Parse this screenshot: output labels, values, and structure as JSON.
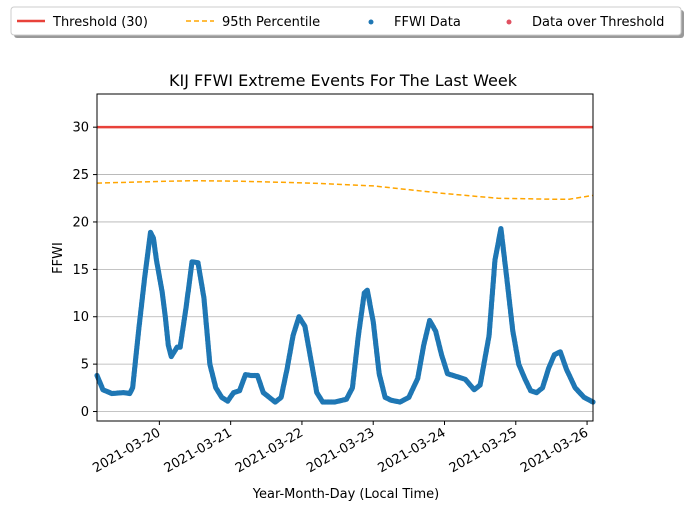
{
  "chart_data": {
    "type": "scatter",
    "title": "KIJ FFWI Extreme Events For The Last Week",
    "xlabel": "Year-Month-Day (Local Time)",
    "ylabel": "FFWI",
    "x_ticks": [
      "2021-03-20",
      "2021-03-21",
      "2021-03-22",
      "2021-03-23",
      "2021-03-24",
      "2021-03-25",
      "2021-03-26"
    ],
    "y_ticks": [
      "0",
      "5",
      "10",
      "15",
      "20",
      "25",
      "30"
    ],
    "xlim": [
      "2021-03-19 03:00",
      "2021-03-26 02:00"
    ],
    "ylim": [
      -1,
      33.5
    ],
    "grid": "horizontal",
    "legend_position": "top, outside plot",
    "colors": {
      "threshold": "#e8423a",
      "percentile": "#ffa500",
      "data": "#1f77b4",
      "over": "#e05060"
    },
    "legend": [
      {
        "label": "Threshold (30)",
        "style": "line",
        "color": "#e8423a"
      },
      {
        "label": "95th Percentile",
        "style": "dashed",
        "color": "#ffa500"
      },
      {
        "label": "FFWI Data",
        "style": "marker",
        "color": "#1f77b4"
      },
      {
        "label": "Data over Threshold",
        "style": "marker",
        "color": "#e05060"
      }
    ],
    "threshold": 30,
    "series": [
      {
        "name": "95th Percentile",
        "points": [
          [
            "2021-03-19 03:00",
            24.1
          ],
          [
            "2021-03-20 03:00",
            24.3
          ],
          [
            "2021-03-20 12:00",
            24.35
          ],
          [
            "2021-03-21 03:00",
            24.3
          ],
          [
            "2021-03-22 03:00",
            24.1
          ],
          [
            "2021-03-23 00:00",
            23.8
          ],
          [
            "2021-03-24 00:00",
            23.0
          ],
          [
            "2021-03-24 18:00",
            22.5
          ],
          [
            "2021-03-25 12:00",
            22.4
          ],
          [
            "2021-03-25 18:00",
            22.4
          ],
          [
            "2021-03-26 02:00",
            22.8
          ]
        ]
      },
      {
        "name": "FFWI Data",
        "points": [
          [
            "2021-03-19 03:00",
            3.8
          ],
          [
            "2021-03-19 05:00",
            2.3
          ],
          [
            "2021-03-19 08:00",
            1.9
          ],
          [
            "2021-03-19 12:00",
            2.0
          ],
          [
            "2021-03-19 14:00",
            1.9
          ],
          [
            "2021-03-19 15:00",
            2.5
          ],
          [
            "2021-03-19 17:00",
            8.5
          ],
          [
            "2021-03-19 19:00",
            14.0
          ],
          [
            "2021-03-19 21:00",
            18.9
          ],
          [
            "2021-03-19 22:00",
            18.3
          ],
          [
            "2021-03-19 23:00",
            16.0
          ],
          [
            "2021-03-20 01:00",
            12.5
          ],
          [
            "2021-03-20 02:00",
            10.0
          ],
          [
            "2021-03-20 03:00",
            7.0
          ],
          [
            "2021-03-20 04:00",
            5.8
          ],
          [
            "2021-03-20 06:00",
            6.8
          ],
          [
            "2021-03-20 07:00",
            6.8
          ],
          [
            "2021-03-20 09:00",
            11.0
          ],
          [
            "2021-03-20 11:00",
            15.8
          ],
          [
            "2021-03-20 13:00",
            15.7
          ],
          [
            "2021-03-20 15:00",
            12.0
          ],
          [
            "2021-03-20 17:00",
            5.0
          ],
          [
            "2021-03-20 19:00",
            2.5
          ],
          [
            "2021-03-20 21:00",
            1.5
          ],
          [
            "2021-03-20 23:00",
            1.1
          ],
          [
            "2021-03-21 01:00",
            2.0
          ],
          [
            "2021-03-21 03:00",
            2.2
          ],
          [
            "2021-03-21 05:00",
            3.9
          ],
          [
            "2021-03-21 07:00",
            3.8
          ],
          [
            "2021-03-21 09:00",
            3.8
          ],
          [
            "2021-03-21 11:00",
            2.0
          ],
          [
            "2021-03-21 13:00",
            1.5
          ],
          [
            "2021-03-21 15:00",
            1.0
          ],
          [
            "2021-03-21 17:00",
            1.5
          ],
          [
            "2021-03-21 19:00",
            4.5
          ],
          [
            "2021-03-21 21:00",
            8.0
          ],
          [
            "2021-03-21 23:00",
            10.0
          ],
          [
            "2021-03-22 01:00",
            9.0
          ],
          [
            "2021-03-22 03:00",
            5.5
          ],
          [
            "2021-03-22 05:00",
            2.0
          ],
          [
            "2021-03-22 07:00",
            1.0
          ],
          [
            "2021-03-22 11:00",
            1.0
          ],
          [
            "2021-03-22 15:00",
            1.3
          ],
          [
            "2021-03-22 17:00",
            2.5
          ],
          [
            "2021-03-22 19:00",
            8.0
          ],
          [
            "2021-03-22 21:00",
            12.5
          ],
          [
            "2021-03-22 22:00",
            12.8
          ],
          [
            "2021-03-23 00:00",
            9.5
          ],
          [
            "2021-03-23 02:00",
            4.0
          ],
          [
            "2021-03-23 04:00",
            1.5
          ],
          [
            "2021-03-23 06:00",
            1.2
          ],
          [
            "2021-03-23 09:00",
            1.0
          ],
          [
            "2021-03-23 12:00",
            1.5
          ],
          [
            "2021-03-23 15:00",
            3.5
          ],
          [
            "2021-03-23 17:00",
            7.0
          ],
          [
            "2021-03-23 19:00",
            9.6
          ],
          [
            "2021-03-23 21:00",
            8.5
          ],
          [
            "2021-03-23 23:00",
            6.0
          ],
          [
            "2021-03-24 01:00",
            4.0
          ],
          [
            "2021-03-24 04:00",
            3.7
          ],
          [
            "2021-03-24 07:00",
            3.4
          ],
          [
            "2021-03-24 10:00",
            2.3
          ],
          [
            "2021-03-24 12:00",
            2.8
          ],
          [
            "2021-03-24 15:00",
            8.0
          ],
          [
            "2021-03-24 17:00",
            16.0
          ],
          [
            "2021-03-24 19:00",
            19.3
          ],
          [
            "2021-03-24 21:00",
            14.0
          ],
          [
            "2021-03-24 23:00",
            8.5
          ],
          [
            "2021-03-25 01:00",
            5.0
          ],
          [
            "2021-03-25 03:00",
            3.5
          ],
          [
            "2021-03-25 05:00",
            2.2
          ],
          [
            "2021-03-25 07:00",
            2.0
          ],
          [
            "2021-03-25 09:00",
            2.5
          ],
          [
            "2021-03-25 11:00",
            4.5
          ],
          [
            "2021-03-25 13:00",
            6.0
          ],
          [
            "2021-03-25 15:00",
            6.3
          ],
          [
            "2021-03-25 17:00",
            4.5
          ],
          [
            "2021-03-25 20:00",
            2.5
          ],
          [
            "2021-03-25 23:00",
            1.5
          ],
          [
            "2021-03-26 02:00",
            1.0
          ]
        ]
      },
      {
        "name": "Data over Threshold",
        "points": []
      }
    ]
  }
}
